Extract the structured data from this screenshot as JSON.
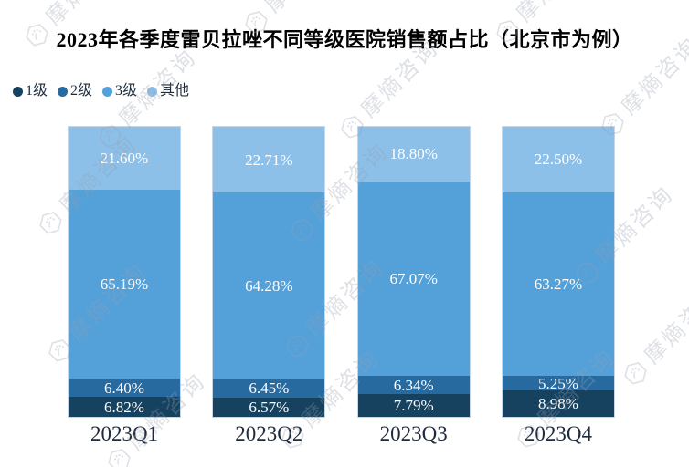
{
  "title": {
    "text": "2023年各季度雷贝拉唑不同等级医院销售额占比（北京市为例）"
  },
  "watermark": {
    "text": "摩熵咨询"
  },
  "colors": {
    "tier1": "#17425F",
    "tier2": "#276AA0",
    "tier3": "#54A1DA",
    "other": "#8DC0E9",
    "axis_label": "#1F2A3C"
  },
  "chart_data": {
    "type": "bar",
    "stacked": true,
    "title": "2023年各季度雷贝拉唑不同等级医院销售额占比（北京市为例）",
    "categories": [
      "2023Q1",
      "2023Q2",
      "2023Q3",
      "2023Q4"
    ],
    "series": [
      {
        "name": "1级",
        "color": "#17425F",
        "values": [
          6.82,
          6.57,
          7.79,
          8.98
        ]
      },
      {
        "name": "2级",
        "color": "#276AA0",
        "values": [
          6.4,
          6.45,
          6.34,
          5.25
        ]
      },
      {
        "name": "3级",
        "color": "#54A1DA",
        "values": [
          65.19,
          64.28,
          67.07,
          63.27
        ]
      },
      {
        "name": "其他",
        "color": "#8DC0E9",
        "values": [
          21.6,
          22.71,
          18.8,
          22.5
        ]
      }
    ],
    "value_format": "0.00%",
    "data_labels": "inside-center",
    "ylim": [
      0,
      100
    ],
    "grid": false,
    "y_axis_visible": false,
    "legend_position": "top-left"
  }
}
